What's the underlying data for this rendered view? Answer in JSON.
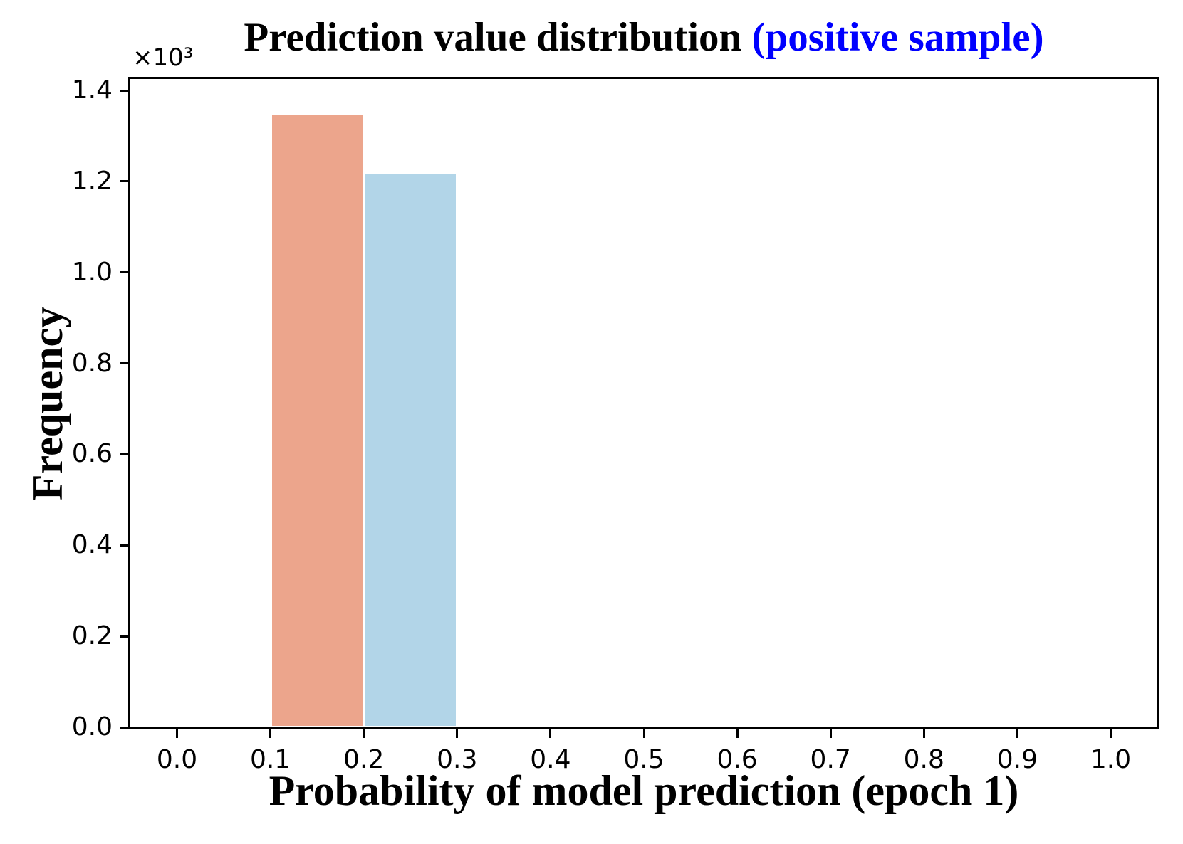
{
  "colors": {
    "title_highlight": "#0000ff",
    "text": "#000000",
    "bar_positive_first": "#eca58c",
    "bar_positive_second": "#b2d5e8",
    "bar_edge": "#ffffff"
  },
  "chart_data": {
    "type": "bar",
    "subtype": "histogram",
    "title": "Prediction value distribution (positive sample)",
    "title_main": "Prediction value distribution ",
    "title_highlight": "(positive sample)",
    "xlabel": "Probability of model prediction (epoch 1)",
    "ylabel": "Frequency",
    "y_offset_text": "×10³",
    "grid": false,
    "legend": null,
    "xlim": [
      -0.05,
      1.05
    ],
    "ylim": [
      0,
      1425
    ],
    "x_tick_values": [
      0.0,
      0.1,
      0.2,
      0.3,
      0.4,
      0.5,
      0.6,
      0.7,
      0.8,
      0.9,
      1.0
    ],
    "x_tick_labels": [
      "0.0",
      "0.1",
      "0.2",
      "0.3",
      "0.4",
      "0.5",
      "0.6",
      "0.7",
      "0.8",
      "0.9",
      "1.0"
    ],
    "y_tick_values": [
      0,
      200,
      400,
      600,
      800,
      1000,
      1200,
      1400
    ],
    "y_tick_labels": [
      "0.0",
      "0.2",
      "0.4",
      "0.6",
      "0.8",
      "1.0",
      "1.2",
      "1.4"
    ],
    "bars": [
      {
        "bin_start": 0.1,
        "bin_end": 0.2,
        "frequency": 1350,
        "color": "#eca58c",
        "edge_color": "#ffffff"
      },
      {
        "bin_start": 0.2,
        "bin_end": 0.3,
        "frequency": 1220,
        "color": "#b2d5e8",
        "edge_color": "#ffffff"
      }
    ]
  }
}
